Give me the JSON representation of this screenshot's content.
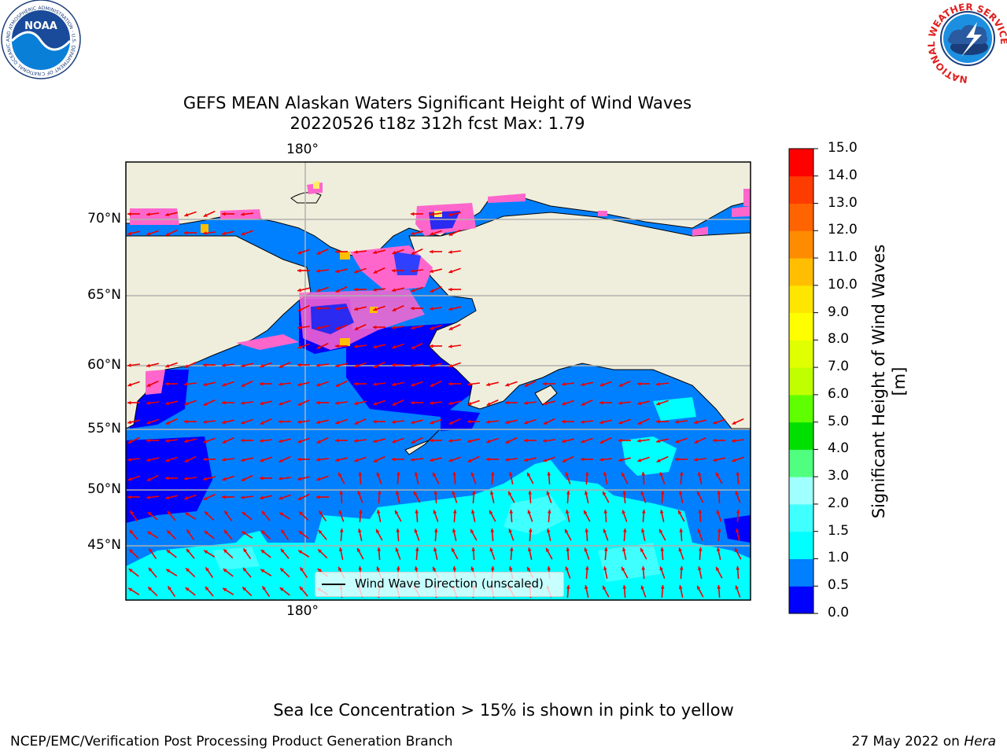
{
  "title_line1": "GEFS MEAN Alaskan Waters Significant Height of Wind Waves",
  "title_line2": "20220526 t18z 312h fcst   Max: 1.79",
  "top_lon_label": "180°",
  "bottom_lon_label": "180°",
  "lat_labels": [
    "70°N",
    "65°N",
    "60°N",
    "55°N",
    "50°N",
    "45°N"
  ],
  "colorbar": {
    "label": "Significant Height of Wind Waves [m]",
    "ticks": [
      "15.0",
      "14.0",
      "13.0",
      "12.0",
      "11.0",
      "10.0",
      "9.0",
      "8.0",
      "7.0",
      "6.0",
      "5.0",
      "4.0",
      "3.0",
      "2.0",
      "1.5",
      "1.0",
      "0.5",
      "0.0"
    ],
    "colors": [
      "#0000ff",
      "#0080ff",
      "#00ffff",
      "#40ffff",
      "#a0ffff",
      "#50ff80",
      "#00e000",
      "#60ff00",
      "#c0ff00",
      "#e0ff00",
      "#ffff00",
      "#ffe600",
      "#ffbf00",
      "#ff8c00",
      "#ff6400",
      "#ff3c00",
      "#ff0000"
    ]
  },
  "legend_label": "Wind Wave Direction (unscaled)",
  "sea_ice_note": "Sea Ice Concentration > 15% is shown in pink to yellow",
  "footer_left": "NCEP/EMC/Verification Post Processing Product Generation Branch",
  "footer_date": "27 May 2022 on",
  "footer_host": "Hera",
  "logos": {
    "noaa_text": "NOAA",
    "noaa_ring": "NATIONAL OCEANIC AND ATMOSPHERIC ADMINISTRATION · U.S. DEPARTMENT OF COMMERCE ·",
    "nws_ring": "NATIONAL WEATHER SERVICE"
  },
  "colors": {
    "land": "#efeedc",
    "ice_pink": "#ff66cc",
    "ice_yellow": "#ffee66",
    "arrow": "#ee0000"
  }
}
